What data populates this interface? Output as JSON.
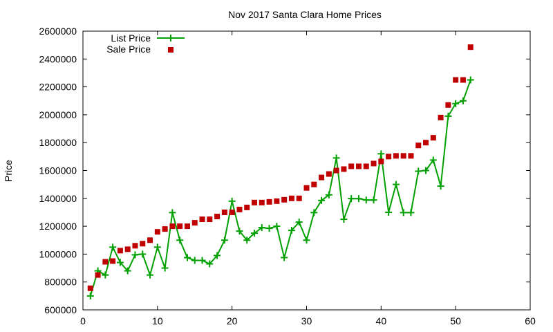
{
  "chart_data": {
    "type": "line",
    "title": "Nov 2017 Santa Clara Home Prices",
    "xlabel": "",
    "ylabel": "Price",
    "xlim": [
      0,
      60
    ],
    "ylim": [
      600000,
      2600000
    ],
    "x_ticks": [
      0,
      10,
      20,
      30,
      40,
      50,
      60
    ],
    "y_ticks": [
      600000,
      800000,
      1000000,
      1200000,
      1400000,
      1600000,
      1800000,
      2000000,
      2200000,
      2400000,
      2600000
    ],
    "grid": false,
    "legend_position": "top-left",
    "colors": {
      "list": "#00a000",
      "sale": "#c00000"
    },
    "series": [
      {
        "name": "List Price",
        "style": "linespoints",
        "x": [
          1,
          2,
          3,
          4,
          5,
          6,
          7,
          8,
          9,
          10,
          11,
          12,
          13,
          14,
          15,
          16,
          17,
          18,
          19,
          20,
          21,
          22,
          23,
          24,
          25,
          26,
          27,
          28,
          29,
          30,
          31,
          32,
          33,
          34,
          35,
          36,
          37,
          38,
          39,
          40,
          41,
          42,
          43,
          44,
          45,
          46,
          47,
          48,
          49,
          50,
          51,
          52
        ],
        "values": [
          700000,
          880000,
          850000,
          1050000,
          940000,
          880000,
          995000,
          1000000,
          850000,
          1050000,
          900000,
          1298000,
          1100000,
          975000,
          955000,
          955000,
          930000,
          990000,
          1100000,
          1380000,
          1165000,
          1100000,
          1150000,
          1190000,
          1185000,
          1200000,
          975000,
          1170000,
          1230000,
          1100000,
          1298000,
          1385000,
          1425000,
          1690000,
          1250000,
          1398000,
          1398000,
          1388000,
          1388000,
          1720000,
          1300000,
          1500000,
          1298000,
          1298000,
          1595000,
          1600000,
          1675000,
          1488000,
          1990000,
          2080000,
          2100000,
          2250000
        ]
      },
      {
        "name": "Sale Price",
        "style": "points",
        "x": [
          1,
          2,
          3,
          4,
          5,
          6,
          7,
          8,
          9,
          10,
          11,
          12,
          13,
          14,
          15,
          16,
          17,
          18,
          19,
          20,
          21,
          22,
          23,
          24,
          25,
          26,
          27,
          28,
          29,
          30,
          31,
          32,
          33,
          34,
          35,
          36,
          37,
          38,
          39,
          40,
          41,
          42,
          43,
          44,
          45,
          46,
          47,
          48,
          49,
          50,
          51,
          52
        ],
        "values": [
          755000,
          850000,
          945000,
          950000,
          1025000,
          1035000,
          1060000,
          1075000,
          1100000,
          1160000,
          1180000,
          1200000,
          1200000,
          1200000,
          1225000,
          1250000,
          1250000,
          1270000,
          1300000,
          1300000,
          1320000,
          1335000,
          1370000,
          1370000,
          1375000,
          1380000,
          1390000,
          1400000,
          1400000,
          1475000,
          1500000,
          1550000,
          1575000,
          1600000,
          1610000,
          1630000,
          1630000,
          1630000,
          1650000,
          1665000,
          1700000,
          1705000,
          1705000,
          1705000,
          1780000,
          1800000,
          1835000,
          1980000,
          2070000,
          2250000,
          2250000,
          2485000
        ]
      }
    ]
  }
}
